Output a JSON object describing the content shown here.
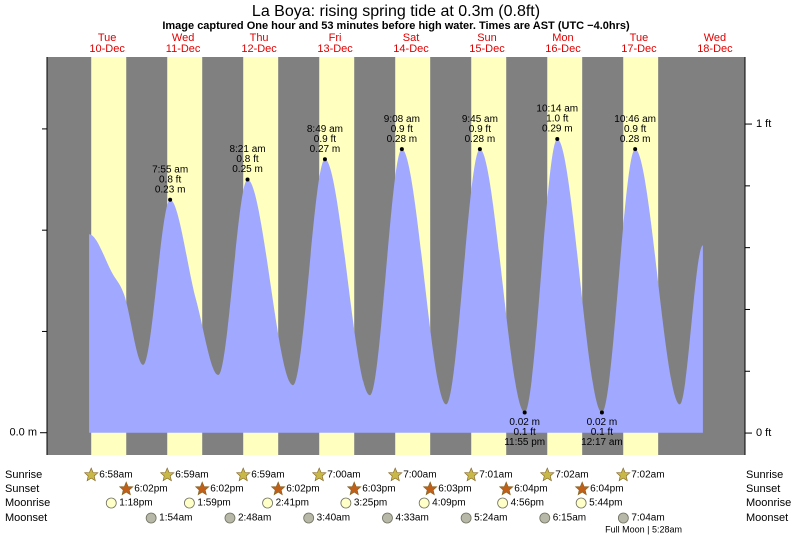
{
  "chart_data": {
    "type": "tide",
    "title": "La Boya: rising  spring tide at 0.3m (0.8ft)",
    "subtitle": "Image captured One hour and 53 minutes before high water. Times are AST (UTC −4.0hrs)",
    "footnote": "Full Moon | 5:28am",
    "days": [
      {
        "weekday": "Tue",
        "date": "10-Dec"
      },
      {
        "weekday": "Wed",
        "date": "11-Dec"
      },
      {
        "weekday": "Thu",
        "date": "12-Dec"
      },
      {
        "weekday": "Fri",
        "date": "13-Dec"
      },
      {
        "weekday": "Sat",
        "date": "14-Dec"
      },
      {
        "weekday": "Sun",
        "date": "15-Dec"
      },
      {
        "weekday": "Mon",
        "date": "16-Dec"
      },
      {
        "weekday": "Tue",
        "date": "17-Dec"
      },
      {
        "weekday": "Wed",
        "date": "18-Dec"
      }
    ],
    "xlim": [
      -7,
      213.5
    ],
    "ylim": [
      -0.022,
      0.371
    ],
    "yticks": [
      {
        "value": 0,
        "label": "0.0 m"
      }
    ],
    "yminor": [
      0.1,
      0.2,
      0.3
    ],
    "y2lim": [
      -0.071,
      1.217
    ],
    "y2ticks": [
      {
        "value": 0,
        "label": "0 ft"
      },
      {
        "value": 1,
        "label": "1 ft"
      }
    ],
    "y2minor": [
      0.2,
      0.4,
      0.6,
      0.8
    ],
    "colors": {
      "day": "#ffffc0",
      "night": "#808080",
      "day_label": "#e00000"
    },
    "series": [
      {
        "color": "#a0a8ff",
        "x": [
          6.3,
          13.9,
          17.4,
          23.4,
          31.9,
          40.1,
          47.1,
          56.35,
          70.7,
          80.8,
          95.0,
          105.1,
          119.1,
          129.75,
          143.9,
          154.2,
          168.3,
          178.8,
          192.9,
          200.2
        ],
        "values": [
          0.196,
          0.156,
          0.136,
          0.067,
          0.23,
          0.131,
          0.057,
          0.25,
          0.047,
          0.27,
          0.037,
          0.28,
          0.028,
          0.28,
          0.02,
          0.29,
          0.02,
          0.28,
          0.028,
          0.185
        ]
      }
    ],
    "highs": {
      "x": [
        31.9,
        56.35,
        80.8,
        105.1,
        129.75,
        154.2,
        178.8
      ],
      "values": [
        0.23,
        0.25,
        0.27,
        0.28,
        0.28,
        0.29,
        0.28
      ],
      "value_labels": [
        "0.23 m",
        "0.25 m",
        "0.27 m",
        "0.28 m",
        "0.28 m",
        "0.29 m",
        "0.28 m"
      ],
      "ft_labels": [
        "0.8 ft",
        "0.8 ft",
        "0.9 ft",
        "0.9 ft",
        "0.9 ft",
        "1.0 ft",
        "0.9 ft"
      ],
      "times": [
        "7:55 am",
        "8:21 am",
        "8:49 am",
        "9:08 am",
        "9:45 am",
        "10:14 am",
        "10:46 am"
      ]
    },
    "lows": {
      "x": [
        143.9,
        168.3
      ],
      "values": [
        0.02,
        0.02
      ],
      "value_labels": [
        "0.02 m",
        "0.02 m"
      ],
      "ft_labels": [
        "0.1 ft",
        "0.1 ft"
      ],
      "times": [
        "11:55 pm",
        "12:17 am"
      ]
    },
    "events": [
      {
        "label": "Sunrise",
        "icon": "star",
        "color": "#c8b848",
        "times": [
          "6:58am",
          "6:59am",
          "6:59am",
          "7:00am",
          "7:00am",
          "7:01am",
          "7:02am",
          "7:02am",
          null
        ]
      },
      {
        "label": "Sunset",
        "icon": "star",
        "color": "#c06018",
        "times": [
          "6:02pm",
          "6:02pm",
          "6:02pm",
          "6:03pm",
          "6:03pm",
          "6:04pm",
          "6:04pm",
          null,
          null
        ]
      },
      {
        "label": "Moonrise",
        "icon": "circle",
        "color": "#ffffc8",
        "times": [
          "1:18pm",
          "1:59pm",
          "2:41pm",
          "3:25pm",
          "4:09pm",
          "4:56pm",
          "5:44pm",
          null,
          null
        ]
      },
      {
        "label": "Moonset",
        "icon": "circle",
        "color": "#b8b8a8",
        "times": [
          null,
          "1:54am",
          "2:48am",
          "3:40am",
          "4:33am",
          "5:24am",
          "6:15am",
          "7:04am",
          null
        ]
      }
    ]
  }
}
